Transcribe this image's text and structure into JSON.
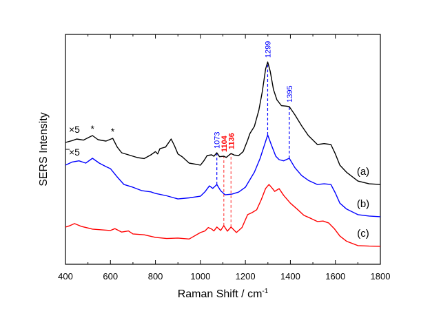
{
  "chart_data": {
    "type": "line",
    "title": "",
    "xlabel": "Raman Shift / cm",
    "xlabel_superscript": "-1",
    "ylabel": "SERS Intensity",
    "xlim": [
      400,
      1800
    ],
    "ylim": [
      0,
      100
    ],
    "x_ticks": [
      400,
      600,
      800,
      1000,
      1200,
      1400,
      1600,
      1800
    ],
    "x_tick_labels": [
      "400",
      "600",
      "800",
      "1000",
      "1200",
      "1400",
      "1600",
      "1800"
    ],
    "y_ticks_labeled": false,
    "grid": false,
    "legend": "none",
    "series": [
      {
        "name": "(a)",
        "color": "#000000",
        "multiplier_label": "×5",
        "points": [
          [
            400,
            53.0
          ],
          [
            430,
            53.8
          ],
          [
            450,
            54.5
          ],
          [
            480,
            54.0
          ],
          [
            500,
            55.0
          ],
          [
            520,
            56.0
          ],
          [
            545,
            54.2
          ],
          [
            580,
            53.6
          ],
          [
            610,
            54.8
          ],
          [
            630,
            51.0
          ],
          [
            650,
            48.5
          ],
          [
            690,
            47.3
          ],
          [
            720,
            46.4
          ],
          [
            750,
            46.0
          ],
          [
            780,
            47.6
          ],
          [
            800,
            49.0
          ],
          [
            810,
            48.0
          ],
          [
            820,
            50.3
          ],
          [
            845,
            51.0
          ],
          [
            870,
            54.5
          ],
          [
            885,
            51.5
          ],
          [
            900,
            48.0
          ],
          [
            920,
            46.7
          ],
          [
            950,
            44.0
          ],
          [
            980,
            43.5
          ],
          [
            1000,
            43.1
          ],
          [
            1015,
            45.0
          ],
          [
            1030,
            47.3
          ],
          [
            1050,
            47.6
          ],
          [
            1060,
            47.0
          ],
          [
            1073,
            48.5
          ],
          [
            1085,
            46.8
          ],
          [
            1104,
            47.0
          ],
          [
            1115,
            46.5
          ],
          [
            1136,
            48.2
          ],
          [
            1150,
            47.5
          ],
          [
            1170,
            47.3
          ],
          [
            1190,
            49.0
          ],
          [
            1210,
            54.0
          ],
          [
            1220,
            56.9
          ],
          [
            1240,
            60.0
          ],
          [
            1260,
            67.1
          ],
          [
            1275,
            75.0
          ],
          [
            1290,
            85.0
          ],
          [
            1299,
            88.0
          ],
          [
            1310,
            84.0
          ],
          [
            1325,
            76.0
          ],
          [
            1340,
            71.6
          ],
          [
            1360,
            69.0
          ],
          [
            1380,
            68.8
          ],
          [
            1395,
            68.6
          ],
          [
            1420,
            65.0
          ],
          [
            1450,
            60.2
          ],
          [
            1480,
            56.0
          ],
          [
            1520,
            52.1
          ],
          [
            1550,
            52.5
          ],
          [
            1580,
            52.1
          ],
          [
            1600,
            48.0
          ],
          [
            1620,
            43.1
          ],
          [
            1650,
            40.0
          ],
          [
            1700,
            36.2
          ],
          [
            1750,
            35.0
          ],
          [
            1800,
            34.7
          ]
        ]
      },
      {
        "name": "(b)",
        "color": "#0000ff",
        "multiplier_label": "×5",
        "points": [
          [
            400,
            43.1
          ],
          [
            430,
            44.5
          ],
          [
            460,
            45.0
          ],
          [
            490,
            44.0
          ],
          [
            520,
            46.1
          ],
          [
            550,
            44.0
          ],
          [
            580,
            42.5
          ],
          [
            600,
            41.6
          ],
          [
            630,
            38.0
          ],
          [
            660,
            34.7
          ],
          [
            700,
            33.5
          ],
          [
            740,
            32.0
          ],
          [
            780,
            31.5
          ],
          [
            800,
            30.8
          ],
          [
            850,
            29.8
          ],
          [
            900,
            28.4
          ],
          [
            950,
            28.9
          ],
          [
            1000,
            29.6
          ],
          [
            1020,
            31.5
          ],
          [
            1040,
            34.1
          ],
          [
            1055,
            33.0
          ],
          [
            1073,
            34.7
          ],
          [
            1090,
            32.0
          ],
          [
            1110,
            30.2
          ],
          [
            1140,
            30.5
          ],
          [
            1170,
            31.4
          ],
          [
            1200,
            33.5
          ],
          [
            1240,
            40.1
          ],
          [
            1265,
            46.0
          ],
          [
            1285,
            52.0
          ],
          [
            1299,
            56.3
          ],
          [
            1315,
            52.0
          ],
          [
            1335,
            47.0
          ],
          [
            1350,
            45.5
          ],
          [
            1370,
            45.0
          ],
          [
            1395,
            46.1
          ],
          [
            1420,
            42.0
          ],
          [
            1450,
            38.6
          ],
          [
            1480,
            36.5
          ],
          [
            1520,
            34.7
          ],
          [
            1550,
            35.0
          ],
          [
            1580,
            34.7
          ],
          [
            1600,
            31.0
          ],
          [
            1620,
            26.6
          ],
          [
            1650,
            24.0
          ],
          [
            1700,
            21.6
          ],
          [
            1750,
            21.0
          ],
          [
            1800,
            20.7
          ]
        ]
      },
      {
        "name": "(c)",
        "color": "#ff0000",
        "multiplier_label": "",
        "points": [
          [
            400,
            16.2
          ],
          [
            420,
            16.8
          ],
          [
            440,
            17.7
          ],
          [
            470,
            16.5
          ],
          [
            520,
            15.3
          ],
          [
            560,
            15.0
          ],
          [
            600,
            14.7
          ],
          [
            620,
            15.5
          ],
          [
            650,
            14.0
          ],
          [
            680,
            14.5
          ],
          [
            700,
            13.2
          ],
          [
            750,
            12.8
          ],
          [
            800,
            11.7
          ],
          [
            850,
            11.2
          ],
          [
            900,
            11.4
          ],
          [
            950,
            11.0
          ],
          [
            1000,
            13.8
          ],
          [
            1020,
            14.5
          ],
          [
            1035,
            16.0
          ],
          [
            1050,
            15.3
          ],
          [
            1060,
            14.5
          ],
          [
            1073,
            16.2
          ],
          [
            1090,
            14.7
          ],
          [
            1104,
            16.8
          ],
          [
            1120,
            14.4
          ],
          [
            1136,
            16.2
          ],
          [
            1160,
            13.8
          ],
          [
            1185,
            16.0
          ],
          [
            1210,
            21.6
          ],
          [
            1230,
            22.5
          ],
          [
            1250,
            23.7
          ],
          [
            1270,
            28.0
          ],
          [
            1290,
            33.0
          ],
          [
            1305,
            34.7
          ],
          [
            1320,
            33.0
          ],
          [
            1330,
            31.7
          ],
          [
            1350,
            32.9
          ],
          [
            1370,
            30.0
          ],
          [
            1400,
            26.6
          ],
          [
            1430,
            24.0
          ],
          [
            1460,
            21.3
          ],
          [
            1490,
            20.0
          ],
          [
            1520,
            18.6
          ],
          [
            1545,
            18.8
          ],
          [
            1570,
            18.0
          ],
          [
            1595,
            15.5
          ],
          [
            1620,
            12.3
          ],
          [
            1650,
            10.0
          ],
          [
            1700,
            8.1
          ],
          [
            1750,
            7.9
          ],
          [
            1800,
            7.8
          ]
        ]
      }
    ],
    "annotations": [
      {
        "text": "1073",
        "x": 1073,
        "color": "#0000ff",
        "bold": false,
        "line_from": 34.7,
        "line_to": 48.5,
        "label_at": 48.5
      },
      {
        "text": "1104",
        "x": 1104,
        "color": "#ff0000",
        "bold": true,
        "line_from": 16.8,
        "line_to": 47.0,
        "label_at": 47.0
      },
      {
        "text": "1136",
        "x": 1136,
        "color": "#ff0000",
        "bold": true,
        "line_from": 16.2,
        "line_to": 48.2,
        "label_at": 48.2
      },
      {
        "text": "1299",
        "x": 1299,
        "color": "#0000ff",
        "bold": false,
        "line_from": 56.3,
        "line_to": 88.0,
        "label_at": 88.0
      },
      {
        "text": "1395",
        "x": 1395,
        "color": "#0000ff",
        "bold": false,
        "line_from": 46.1,
        "line_to": 68.6,
        "label_at": 68.6
      }
    ],
    "asterisks": [
      {
        "text": "*",
        "x": 520,
        "y": 56.0
      },
      {
        "text": "*",
        "x": 610,
        "y": 54.8
      }
    ]
  }
}
